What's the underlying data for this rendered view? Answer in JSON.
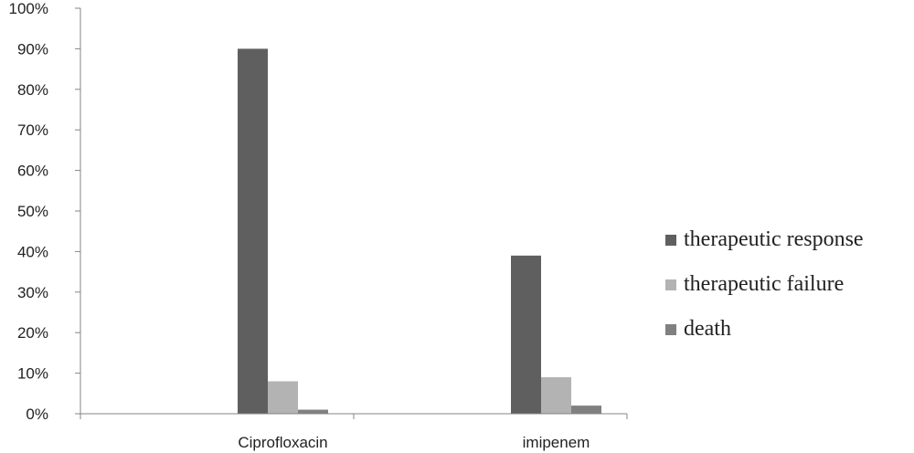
{
  "chart_data": {
    "type": "bar",
    "categories": [
      "Ciprofloxacin",
      "imipenem"
    ],
    "series": [
      {
        "name": "therapeutic response",
        "values": [
          90,
          39
        ],
        "color": "#5f5f5f"
      },
      {
        "name": "therapeutic failure",
        "values": [
          8,
          9
        ],
        "color": "#b3b3b3"
      },
      {
        "name": "death",
        "values": [
          1,
          2
        ],
        "color": "#808080"
      }
    ],
    "ylim": [
      0,
      100
    ],
    "y_ticks": [
      0,
      10,
      20,
      30,
      40,
      50,
      60,
      70,
      80,
      90,
      100
    ],
    "y_tick_labels": [
      "0%",
      "10%",
      "20%",
      "30%",
      "40%",
      "50%",
      "60%",
      "70%",
      "80%",
      "90%",
      "100%"
    ],
    "grid": false,
    "legend_position": "right"
  }
}
